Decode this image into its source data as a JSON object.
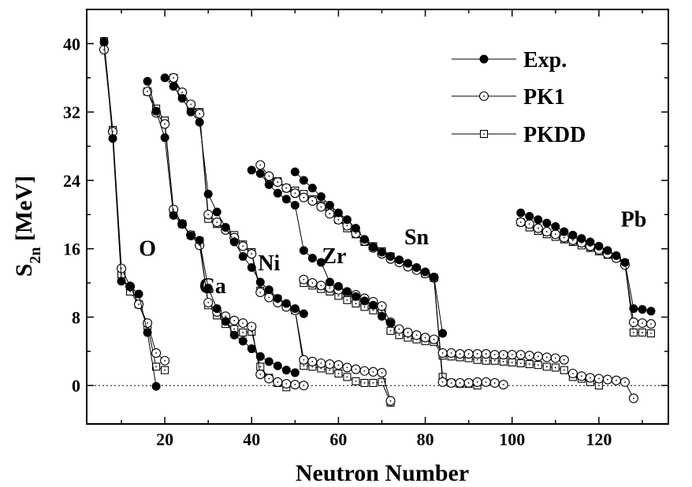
{
  "chart_data": {
    "type": "line",
    "title": "",
    "xlabel": "Neutron Number",
    "ylabel": {
      "main": "S",
      "sub": "2n",
      "unit": "[MeV]"
    },
    "xlim": [
      2,
      136
    ],
    "ylim": [
      -4.5,
      44
    ],
    "x_ticks": [
      20,
      40,
      60,
      80,
      100,
      120
    ],
    "y_ticks": [
      0,
      8,
      16,
      24,
      32,
      40
    ],
    "zero_line": true,
    "legend_position": "top-right",
    "group_labels": [
      {
        "text": "O",
        "x": 16,
        "y": 15.2
      },
      {
        "text": "Ca",
        "x": 31,
        "y": 10.8
      },
      {
        "text": "Ni",
        "x": 44,
        "y": 13.5
      },
      {
        "text": "Zr",
        "x": 59,
        "y": 14.3
      },
      {
        "text": "Sn",
        "x": 78,
        "y": 16.5
      },
      {
        "text": "Pb",
        "x": 128,
        "y": 18.6
      }
    ],
    "series": [
      {
        "name": "Exp.",
        "marker": "filled-circle",
        "segments": [
          {
            "x": [
              6,
              8,
              10,
              12,
              14,
              16,
              18
            ],
            "y": [
              40.2,
              28.9,
              12.2,
              11.6,
              10.7,
              6.2,
              -0.1
            ]
          },
          {
            "x": [
              16,
              18,
              20,
              22,
              24,
              26,
              28,
              30,
              32,
              34,
              36,
              38,
              40,
              42,
              44,
              46,
              48,
              50
            ],
            "y": [
              35.6,
              32.1,
              29.0,
              19.9,
              18.9,
              17.5,
              17.0,
              11.4,
              9.0,
              7.5,
              5.9,
              5.2,
              4.3,
              3.4,
              2.8,
              2.3,
              1.8,
              1.5
            ]
          },
          {
            "x": [
              20,
              22,
              24,
              26,
              28,
              30,
              32,
              34,
              36,
              38,
              40,
              42,
              44,
              46,
              48,
              50,
              52
            ],
            "y": [
              36.0,
              35.0,
              33.6,
              32.0,
              30.8,
              22.4,
              20.3,
              18.5,
              16.8,
              15.1,
              13.8,
              12.1,
              11.2,
              10.2,
              9.6,
              9.0,
              8.4
            ]
          },
          {
            "x": [
              40,
              42,
              44,
              46,
              48,
              50,
              52,
              54,
              56,
              58,
              60,
              62,
              64,
              66,
              68,
              70,
              72
            ],
            "y": [
              25.2,
              24.8,
              23.5,
              22.5,
              21.8,
              21.1,
              15.8,
              14.9,
              14.4,
              12.1,
              11.6,
              11.0,
              10.4,
              9.9,
              9.4,
              8.1,
              7.3
            ]
          },
          {
            "x": [
              50,
              52,
              54,
              56,
              58,
              60,
              62,
              64,
              66,
              68,
              70,
              72,
              74,
              76,
              78,
              80,
              82,
              84
            ],
            "y": [
              25.0,
              24.0,
              23.1,
              22.1,
              21.1,
              20.2,
              19.4,
              18.4,
              17.1,
              16.2,
              15.6,
              15.1,
              14.7,
              14.3,
              13.8,
              13.3,
              12.7,
              6.1
            ]
          },
          {
            "x": [
              102,
              104,
              106,
              108,
              110,
              112,
              114,
              116,
              118,
              120,
              122,
              124,
              126,
              128,
              130,
              132
            ],
            "y": [
              20.2,
              19.8,
              19.4,
              19.0,
              18.6,
              18.0,
              17.6,
              17.2,
              16.8,
              16.3,
              15.8,
              15.2,
              14.4,
              9.0,
              8.9,
              8.7
            ]
          }
        ]
      },
      {
        "name": "PK1",
        "marker": "open-circle",
        "segments": [
          {
            "x": [
              6,
              8,
              10,
              12,
              14,
              16,
              18,
              20
            ],
            "y": [
              39.3,
              29.7,
              13.7,
              11.6,
              9.5,
              7.3,
              3.8,
              2.9
            ]
          },
          {
            "x": [
              16,
              18,
              20,
              22,
              24,
              26,
              28,
              30,
              32,
              34,
              36,
              38,
              40,
              42,
              44,
              46,
              48,
              50,
              52
            ],
            "y": [
              34.4,
              31.9,
              30.6,
              20.6,
              18.9,
              17.6,
              16.4,
              9.7,
              8.6,
              8.1,
              7.6,
              7.3,
              6.9,
              1.3,
              0.8,
              0.4,
              0.2,
              0.1,
              0.0
            ]
          },
          {
            "x": [
              22,
              24,
              26,
              28,
              30,
              32,
              34,
              36,
              38,
              40,
              42,
              44,
              46,
              48,
              50,
              52,
              54,
              56,
              58,
              60,
              62,
              64,
              66,
              68,
              70,
              72
            ],
            "y": [
              36.0,
              34.3,
              32.9,
              31.8,
              20.0,
              19.1,
              18.2,
              17.3,
              16.3,
              15.4,
              10.9,
              10.3,
              9.7,
              9.2,
              8.8,
              3.0,
              2.8,
              2.6,
              2.5,
              2.4,
              2.1,
              1.9,
              1.7,
              1.6,
              1.5,
              -1.8
            ]
          },
          {
            "x": [
              42,
              44,
              46,
              48,
              50,
              52,
              54,
              56,
              58,
              60,
              62,
              64,
              66,
              68,
              70,
              72,
              74,
              76,
              78,
              80,
              82,
              84,
              86,
              88,
              90,
              92,
              94,
              96,
              98
            ],
            "y": [
              25.8,
              24.5,
              23.8,
              23.1,
              22.5,
              22.0,
              21.6,
              20.9,
              20.1,
              19.4,
              18.7,
              17.8,
              16.9,
              16.1,
              15.4,
              14.8,
              14.4,
              13.9,
              13.5,
              13.1,
              12.6,
              0.4,
              0.3,
              0.3,
              0.3,
              0.4,
              0.4,
              0.3,
              0.1
            ]
          },
          {
            "x": [
              52,
              54,
              56,
              58,
              60,
              62,
              64,
              66,
              68,
              70,
              72,
              74,
              76,
              78,
              80,
              82,
              84,
              86,
              88,
              90,
              92,
              94,
              96,
              98,
              100,
              102,
              104,
              106,
              108,
              110,
              112
            ],
            "y": [
              12.4,
              12.0,
              11.7,
              11.4,
              11.2,
              10.9,
              10.6,
              10.2,
              9.8,
              9.3,
              7.4,
              6.6,
              6.2,
              5.9,
              5.6,
              5.4,
              3.8,
              3.8,
              3.7,
              3.7,
              3.7,
              3.7,
              3.6,
              3.6,
              3.6,
              3.6,
              3.5,
              3.4,
              3.3,
              3.2,
              3.0
            ]
          },
          {
            "x": [
              102,
              104,
              106,
              108,
              110,
              112,
              114,
              116,
              118,
              120,
              122,
              124,
              126,
              128,
              130,
              132
            ],
            "y": [
              19.1,
              18.9,
              18.4,
              18.0,
              17.7,
              17.3,
              17.0,
              16.7,
              16.3,
              15.9,
              15.4,
              14.9,
              14.1,
              7.4,
              7.3,
              7.2
            ]
          },
          {
            "x": [
              114,
              116,
              118,
              120,
              122,
              124,
              126,
              128
            ],
            "y": [
              1.4,
              1.1,
              0.9,
              0.8,
              0.7,
              0.6,
              0.4,
              -1.5
            ]
          }
        ]
      },
      {
        "name": "PKDD",
        "marker": "open-square",
        "segments": [
          {
            "x": [
              6,
              8,
              10,
              12,
              14,
              16,
              18,
              20
            ],
            "y": [
              40.3,
              29.9,
              13.0,
              11.0,
              9.5,
              7.0,
              2.2,
              1.8
            ]
          },
          {
            "x": [
              16,
              18,
              20,
              22,
              24,
              26,
              28,
              30,
              32,
              34,
              36,
              38,
              40,
              42,
              44,
              46,
              48
            ],
            "y": [
              34.4,
              32.4,
              31.0,
              20.4,
              18.9,
              17.6,
              16.9,
              9.4,
              8.2,
              7.2,
              6.6,
              6.2,
              6.3,
              2.2,
              0.9,
              0.3,
              -0.2
            ]
          },
          {
            "x": [
              22,
              24,
              26,
              28,
              30,
              32,
              34,
              36,
              38,
              40,
              42,
              44,
              46,
              48,
              50,
              52,
              54,
              56,
              58,
              60,
              62,
              64,
              66,
              68,
              70,
              72
            ],
            "y": [
              36.0,
              34.0,
              32.7,
              32.0,
              19.5,
              18.9,
              18.3,
              17.6,
              16.5,
              15.6,
              11.1,
              10.5,
              10.1,
              9.3,
              8.8,
              2.3,
              2.2,
              2.0,
              1.8,
              1.4,
              1.0,
              0.5,
              0.3,
              0.3,
              0.4,
              -2.0
            ]
          },
          {
            "x": [
              44,
              46,
              48,
              50,
              52,
              54,
              56,
              58,
              60,
              62,
              64,
              66,
              68,
              70,
              72,
              74,
              76,
              78,
              80,
              82,
              84,
              86,
              88,
              90,
              92
            ],
            "y": [
              24.3,
              23.9,
              23.1,
              22.8,
              22.4,
              21.8,
              21.1,
              20.4,
              19.4,
              18.4,
              17.7,
              16.8,
              16.3,
              15.7,
              15.1,
              14.5,
              14.1,
              13.6,
              13.1,
              12.6,
              1.0,
              0.3,
              0.2,
              0.2,
              0.0
            ]
          },
          {
            "x": [
              52,
              54,
              56,
              58,
              60,
              62,
              64,
              66,
              68,
              70,
              72,
              74,
              76,
              78,
              80,
              82,
              84,
              86,
              88,
              90,
              92,
              94,
              96,
              98,
              100,
              102,
              104,
              106,
              108,
              110,
              112
            ],
            "y": [
              12.0,
              11.7,
              11.3,
              11.0,
              10.5,
              10.0,
              9.6,
              9.2,
              8.8,
              8.7,
              6.4,
              5.9,
              5.6,
              5.4,
              5.2,
              5.1,
              3.5,
              3.4,
              3.3,
              3.2,
              3.0,
              2.9,
              2.9,
              2.8,
              2.7,
              2.6,
              2.5,
              2.4,
              2.2,
              2.1,
              1.8
            ]
          },
          {
            "x": [
              102,
              104,
              106,
              108,
              110,
              112,
              114,
              116,
              118,
              120,
              122,
              124,
              126,
              128,
              130,
              132
            ],
            "y": [
              19.1,
              18.5,
              18.1,
              17.7,
              17.4,
              17.1,
              16.8,
              16.4,
              16.1,
              15.7,
              15.3,
              15.0,
              14.3,
              6.2,
              6.2,
              6.1
            ]
          },
          {
            "x": [
              114,
              116,
              118,
              120
            ],
            "y": [
              1.0,
              0.8,
              0.4,
              0.0
            ]
          }
        ]
      }
    ]
  }
}
